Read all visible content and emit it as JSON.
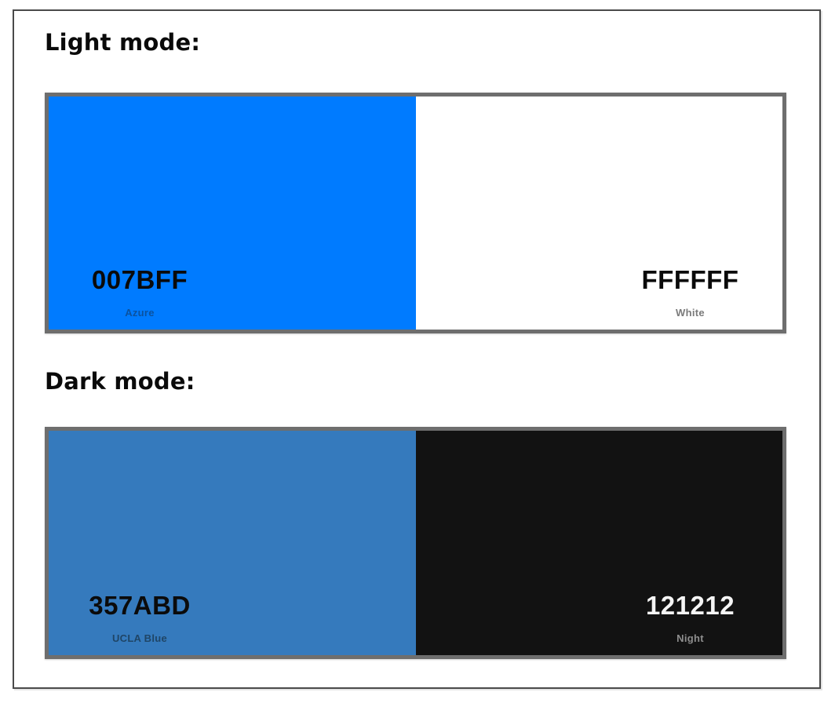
{
  "page": {
    "background": "#ffffff",
    "frame_border_color": "#4a4a4a"
  },
  "sections": [
    {
      "heading": "Light mode:",
      "palette": {
        "border_color": "#6e6e6e",
        "swatches": [
          {
            "hex": "007BFF",
            "name": "Azure",
            "background": "#007BFF",
            "hex_color": "#0a0a0a",
            "name_color": "#0b529f"
          },
          {
            "hex": "FFFFFF",
            "name": "White",
            "background": "#FFFFFF",
            "hex_color": "#0a0a0a",
            "name_color": "#7a7a7a"
          }
        ]
      }
    },
    {
      "heading": "Dark mode:",
      "palette": {
        "border_color": "#6e6e6e",
        "swatches": [
          {
            "hex": "357ABD",
            "name": "UCLA Blue",
            "background": "#357ABD",
            "hex_color": "#0b0b0b",
            "name_color": "#1f4566"
          },
          {
            "hex": "121212",
            "name": "Night",
            "background": "#121212",
            "hex_color": "#f5f5f5",
            "name_color": "#8e8e8e"
          }
        ]
      }
    }
  ]
}
